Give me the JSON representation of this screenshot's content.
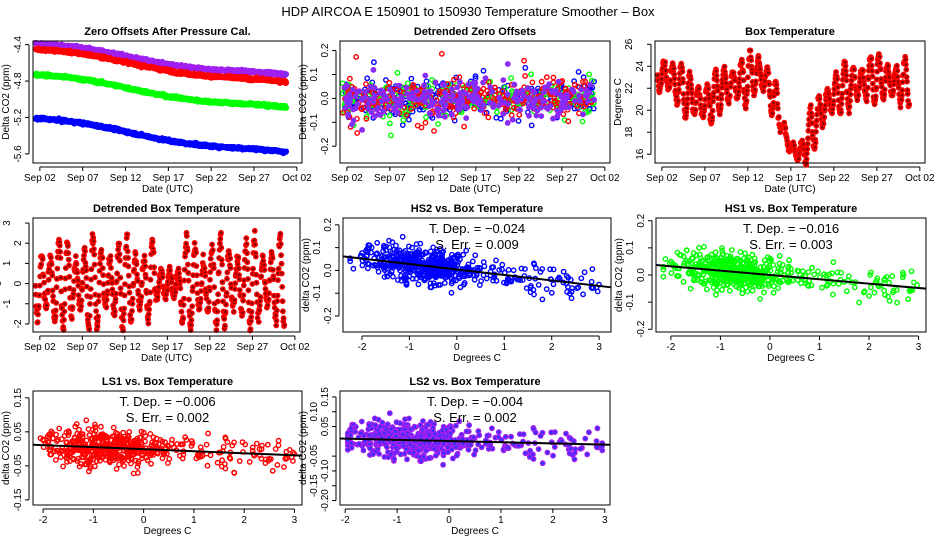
{
  "title": "HDP   AIRCOA E   150901 to 150930   Temperature Smoother – Box",
  "chart_data": [
    {
      "type": "scatter",
      "title": "Zero Offsets After Pressure Cal.",
      "xlabel": "Date (UTC)",
      "ylabel": "Delta CO2 (ppm)",
      "xticks": [
        "Sep 02",
        "Sep 07",
        "Sep 12",
        "Sep 17",
        "Sep 22",
        "Sep 27",
        "Oct 02"
      ],
      "yticks": [
        "-4.4",
        "-4.8",
        "-5.2",
        "-5.6"
      ],
      "ylim": [
        -5.7,
        -4.36
      ],
      "series": [
        {
          "color": "#a020f0",
          "start": -4.4,
          "end": -4.76
        },
        {
          "color": "#ff0000",
          "start": -4.46,
          "end": -4.84
        },
        {
          "color": "#00ff00",
          "start": -4.74,
          "end": -5.12
        },
        {
          "color": "#0000ff",
          "start": -5.22,
          "end": -5.61
        }
      ]
    },
    {
      "type": "scatter",
      "title": "Detrended Zero Offsets",
      "xlabel": "Date (UTC)",
      "ylabel": "Delta CO2 (ppm)",
      "xticks": [
        "Sep 02",
        "Sep 07",
        "Sep 12",
        "Sep 17",
        "Sep 22",
        "Sep 27",
        "Oct 02"
      ],
      "yticks": [
        "-0.2",
        "-0.1",
        "0.0",
        "0.1",
        "0.2"
      ],
      "ylim": [
        -0.27,
        0.24
      ],
      "series_colors": [
        "#0000ff",
        "#00ff00",
        "#ff0000",
        "#a020f0"
      ]
    },
    {
      "type": "scatter",
      "title": "Box Temperature",
      "xlabel": "Date (UTC)",
      "ylabel": "Degrees C",
      "xticks": [
        "Sep 02",
        "Sep 07",
        "Sep 12",
        "Sep 17",
        "Sep 22",
        "Sep 27",
        "Oct 02"
      ],
      "yticks": [
        "16",
        "18",
        "20",
        "22",
        "24",
        "26"
      ],
      "ylim": [
        15.2,
        26.3
      ],
      "daily_mean": [
        [
          1.5,
          23.5
        ],
        [
          3,
          23
        ],
        [
          5,
          21.5
        ],
        [
          7,
          20.5
        ],
        [
          9,
          22
        ],
        [
          11,
          22.5
        ],
        [
          13,
          23.5
        ],
        [
          14,
          23
        ],
        [
          15,
          21
        ],
        [
          16,
          18.5
        ],
        [
          17,
          16.5
        ],
        [
          18,
          16
        ],
        [
          19,
          17.5
        ],
        [
          20,
          19
        ],
        [
          21,
          20.5
        ],
        [
          23,
          22
        ],
        [
          25,
          22.5
        ],
        [
          27,
          23
        ],
        [
          29,
          22.5
        ],
        [
          31,
          22.5
        ]
      ]
    },
    {
      "type": "scatter",
      "title": "Detrended Box Temperature",
      "xlabel": "Date (UTC)",
      "ylabel": "Degrees C",
      "xticks": [
        "Sep 02",
        "Sep 07",
        "Sep 12",
        "Sep 17",
        "Sep 22",
        "Sep 27",
        "Oct 02"
      ],
      "yticks": [
        "-2",
        "-1",
        "0",
        "1",
        "2",
        "3"
      ],
      "ylim": [
        -2.4,
        3.25
      ]
    },
    {
      "type": "scatter",
      "title": "HS2 vs. Box Temperature",
      "xlabel": "Degrees C",
      "ylabel": "delta CO2 (ppm)",
      "xticks": [
        "-2",
        "-1",
        "0",
        "1",
        "2",
        "3"
      ],
      "yticks": [
        "-0.2",
        "-0.1",
        "0.0",
        "0.1",
        "0.2"
      ],
      "xlim": [
        -2.4,
        3.25
      ],
      "ylim": [
        -0.27,
        0.23
      ],
      "color": "#0000ff",
      "slope": -0.024,
      "intercept": 0.004,
      "tdep": "T. Dep. =  −0.024",
      "serr": "S. Err. =  0.009"
    },
    {
      "type": "scatter",
      "title": "HS1 vs. Box Temperature",
      "xlabel": "Degrees C",
      "ylabel": "delta CO2 (ppm)",
      "xticks": [
        "-2",
        "-1",
        "0",
        "1",
        "2",
        "3"
      ],
      "yticks": [
        "-0.2",
        "-0.1",
        "0.0",
        "0.1",
        "0.2"
      ],
      "xlim": [
        -2.3,
        3.15
      ],
      "ylim": [
        -0.21,
        0.21
      ],
      "color": "#00ff00",
      "slope": -0.016,
      "intercept": 0.0,
      "tdep": "T. Dep. =  −0.016",
      "serr": "S. Err. =  0.003"
    },
    {
      "type": "scatter",
      "title": "LS1 vs. Box Temperature",
      "xlabel": "Degrees C",
      "ylabel": "delta CO2 (ppm)",
      "xticks": [
        "-2",
        "-1",
        "0",
        "1",
        "2",
        "3"
      ],
      "yticks": [
        "-0.15",
        "-0.05",
        "0.05",
        "0.15"
      ],
      "xlim": [
        -2.2,
        3.15
      ],
      "ylim": [
        -0.165,
        0.17
      ],
      "color": "#ff0000",
      "slope": -0.006,
      "intercept": -0.001,
      "tdep": "T. Dep. =  −0.006",
      "serr": "S. Err. =  0.002"
    },
    {
      "type": "scatter",
      "title": "LS2 vs. Box Temperature",
      "xlabel": "Degrees C",
      "ylabel": "delta CO2 (ppm)",
      "xticks": [
        "-2",
        "-1",
        "0",
        "1",
        "2",
        "3"
      ],
      "yticks": [
        "-0.20",
        "-0.15",
        "-0.10",
        "-0.05",
        "0.05",
        "0.10",
        "0.15"
      ],
      "xlim": [
        -2.1,
        3.1
      ],
      "ylim": [
        -0.215,
        0.17
      ],
      "color": "#a020f0",
      "fill": "#3030ff",
      "slope": -0.004,
      "intercept": 0.001,
      "tdep": "T. Dep. =  −0.004",
      "serr": "S. Err. =  0.002"
    }
  ]
}
